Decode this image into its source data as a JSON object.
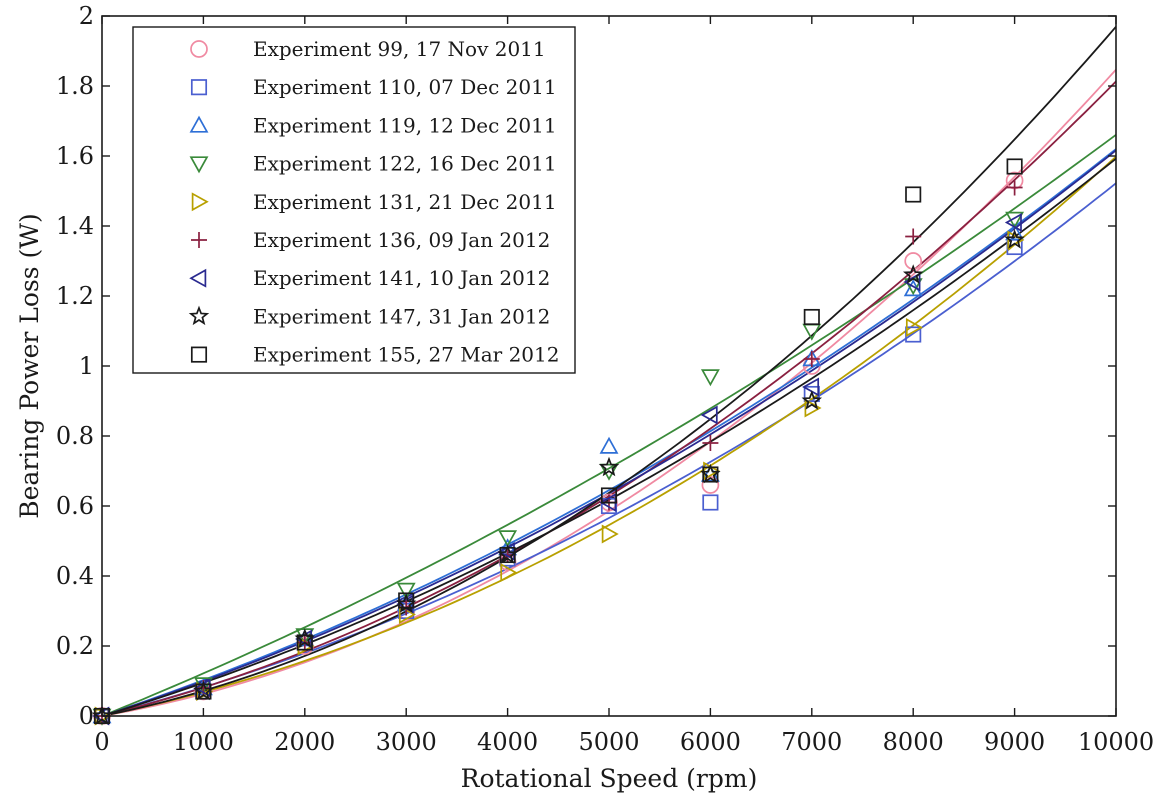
{
  "chart_data": {
    "type": "scatter",
    "title": "",
    "xlabel": "Rotational Speed (rpm)",
    "ylabel": "Bearing Power Loss (W)",
    "xlim": [
      0,
      10000
    ],
    "ylim": [
      0,
      2
    ],
    "x_ticks": [
      0,
      1000,
      2000,
      3000,
      4000,
      5000,
      6000,
      7000,
      8000,
      9000,
      10000
    ],
    "x_tick_labels": [
      "0",
      "1000",
      "2000",
      "3000",
      "4000",
      "5000",
      "6000",
      "7000",
      "8000",
      "9000",
      "10000"
    ],
    "y_ticks": [
      0,
      0.2,
      0.4,
      0.6,
      0.8,
      1,
      1.2,
      1.4,
      1.6,
      1.8,
      2
    ],
    "y_tick_labels": [
      "0",
      "0.2",
      "0.4",
      "0.6",
      "0.8",
      "1",
      "1.2",
      "1.4",
      "1.6",
      "1.8",
      "2"
    ],
    "grid": false,
    "legend_position": "top-left",
    "fit_curves": true,
    "x": [
      0,
      1000,
      2000,
      3000,
      4000,
      5000,
      6000,
      7000,
      8000,
      9000
    ],
    "series": [
      {
        "name": "Experiment 99, 17 Nov 2011",
        "marker": "circle",
        "color": "#f08aa2",
        "values": [
          0,
          0.07,
          0.2,
          0.3,
          0.44,
          0.61,
          0.66,
          1.0,
          1.3,
          1.53
        ],
        "fit_end": 1.85
      },
      {
        "name": "Experiment 110, 07 Dec 2011",
        "marker": "square",
        "color": "#4a5fd0",
        "values": [
          0,
          0.07,
          0.21,
          0.3,
          0.45,
          0.6,
          0.61,
          0.92,
          1.09,
          1.34
        ],
        "fit_end": 1.52
      },
      {
        "name": "Experiment 119, 12 Dec 2011",
        "marker": "triangle-up",
        "color": "#2e6fd6",
        "values": [
          0,
          0.08,
          0.22,
          0.32,
          0.48,
          0.77,
          0.69,
          1.02,
          1.22,
          1.38
        ],
        "fit_end": 1.62
      },
      {
        "name": "Experiment 122, 16 Dec 2011",
        "marker": "triangle-down",
        "color": "#3a8a3a",
        "values": [
          0,
          0.09,
          0.23,
          0.36,
          0.51,
          0.7,
          0.97,
          1.1,
          1.23,
          1.42
        ],
        "fit_end": 1.66
      },
      {
        "name": "Experiment 131, 21 Dec 2011",
        "marker": "triangle-right",
        "color": "#b8a000",
        "values": [
          0,
          0.07,
          0.2,
          0.29,
          0.41,
          0.52,
          0.7,
          0.88,
          1.11,
          1.36
        ],
        "fit_end": 1.6
      },
      {
        "name": "Experiment 136, 09 Jan 2012",
        "marker": "plus",
        "color": "#8a2040",
        "values": [
          0,
          0.08,
          0.21,
          0.31,
          0.46,
          0.61,
          0.78,
          1.02,
          1.37,
          1.51
        ],
        "fit_end": 1.81
      },
      {
        "name": "Experiment 141, 10 Jan 2012",
        "marker": "triangle-left",
        "color": "#2a2a90",
        "values": [
          0,
          0.08,
          0.22,
          0.32,
          0.47,
          0.61,
          0.86,
          0.94,
          1.24,
          1.41
        ],
        "fit_end": 1.61
      },
      {
        "name": "Experiment 147, 31 Jan 2012",
        "marker": "star",
        "color": "#1a1a1a",
        "values": [
          0,
          0.07,
          0.22,
          0.32,
          0.46,
          0.71,
          0.69,
          0.9,
          1.26,
          1.36
        ],
        "fit_end": 1.59
      },
      {
        "name": "Experiment 155, 27 Mar 2012",
        "marker": "square",
        "color": "#1a1a1a",
        "values": [
          0,
          0.07,
          0.21,
          0.33,
          0.46,
          0.63,
          0.69,
          1.14,
          1.49,
          1.57
        ],
        "fit_end": 1.97
      }
    ]
  }
}
